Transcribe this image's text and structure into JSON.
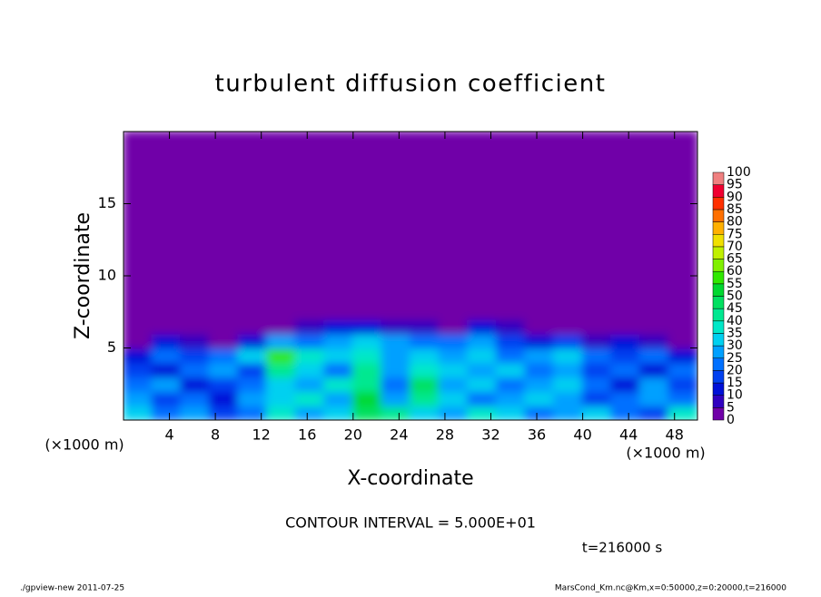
{
  "chart_data": {
    "type": "heatmap",
    "title": "turbulent diffusion coefficient",
    "x_label": "X-coordinate",
    "y_label": "Z-coordinate",
    "unit_label": "(×1000 m)",
    "contour_note": "CONTOUR INTERVAL = 5.000E+01",
    "time_note": "t=216000 s",
    "footer_left": "./gpview-new   2011-07-25",
    "footer_right": "MarsCond_Km.nc@Km,x=0:50000,z=0:20000,t=216000",
    "xlim": [
      0,
      50
    ],
    "xticks": [
      4,
      8,
      12,
      16,
      20,
      24,
      28,
      32,
      36,
      40,
      44,
      48
    ],
    "ylim": [
      0,
      20
    ],
    "yticks": [
      5,
      10,
      15
    ],
    "x": [
      0,
      2.5,
      5,
      7.5,
      10,
      12.5,
      15,
      17.5,
      20,
      22.5,
      25,
      27.5,
      30,
      32.5,
      35,
      37.5,
      40,
      42.5,
      45,
      47.5,
      50
    ],
    "z": [
      0,
      1,
      2,
      3,
      4,
      5,
      6,
      7,
      20
    ],
    "values": [
      [
        30,
        20,
        25,
        15,
        20,
        35,
        25,
        30,
        45,
        40,
        30,
        25,
        35,
        30,
        20,
        25,
        30,
        20,
        15,
        35
      ],
      [
        25,
        15,
        20,
        10,
        25,
        30,
        35,
        25,
        50,
        25,
        40,
        30,
        20,
        25,
        30,
        25,
        15,
        20,
        25,
        20
      ],
      [
        20,
        25,
        10,
        15,
        20,
        30,
        25,
        35,
        40,
        20,
        45,
        25,
        30,
        20,
        25,
        30,
        20,
        10,
        25,
        15
      ],
      [
        15,
        10,
        20,
        25,
        15,
        40,
        30,
        20,
        40,
        25,
        35,
        30,
        25,
        30,
        20,
        25,
        15,
        20,
        10,
        20
      ],
      [
        10,
        20,
        15,
        20,
        30,
        55,
        35,
        30,
        35,
        25,
        30,
        25,
        30,
        20,
        25,
        30,
        20,
        15,
        20,
        10
      ],
      [
        2,
        10,
        5,
        2,
        10,
        25,
        20,
        25,
        30,
        25,
        20,
        20,
        25,
        15,
        10,
        15,
        5,
        10,
        5,
        2
      ],
      [
        2,
        2,
        2,
        2,
        2,
        2,
        5,
        10,
        10,
        5,
        5,
        2,
        10,
        5,
        2,
        2,
        2,
        2,
        2,
        2
      ],
      [
        2,
        2,
        2,
        2,
        2,
        2,
        2,
        2,
        2,
        2,
        2,
        2,
        2,
        2,
        2,
        2,
        2,
        2,
        2,
        2
      ]
    ],
    "levels": [
      0,
      5,
      10,
      15,
      20,
      25,
      30,
      35,
      40,
      45,
      50,
      55,
      60,
      65,
      70,
      75,
      80,
      85,
      90,
      95,
      100
    ],
    "colors": [
      "#7000a8",
      "#3000c0",
      "#0010d8",
      "#0040f0",
      "#0070ff",
      "#00a0ff",
      "#00d0f0",
      "#00e8c8",
      "#00e890",
      "#00e060",
      "#00d830",
      "#30e800",
      "#80f000",
      "#c0f000",
      "#f0e000",
      "#ffb000",
      "#ff7000",
      "#ff3000",
      "#f00030",
      "#f08080"
    ]
  }
}
